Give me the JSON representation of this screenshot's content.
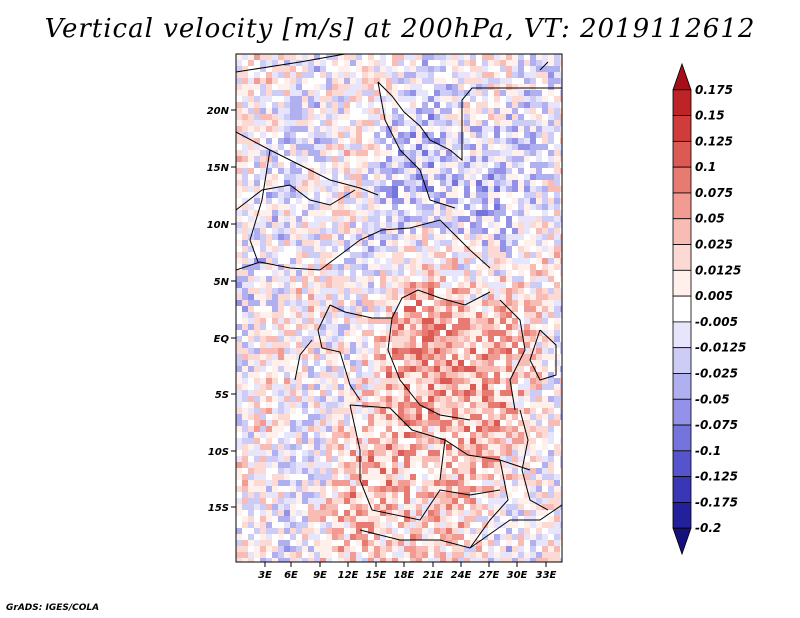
{
  "title": "Vertical velocity [m/s] at 200hPa, VT: 2019112612",
  "credit": "GrADS: IGES/COLA",
  "map": {
    "lat_labels": [
      "20N",
      "15N",
      "10N",
      "5N",
      "EQ",
      "5S",
      "10S",
      "15S"
    ],
    "lon_labels": [
      "3E",
      "6E",
      "9E",
      "12E",
      "15E",
      "18E",
      "21E",
      "24E",
      "27E",
      "30E",
      "33E"
    ]
  },
  "colorbar": {
    "levels": [
      "0.175",
      "0.15",
      "0.125",
      "0.1",
      "0.075",
      "0.05",
      "0.025",
      "0.0125",
      "0.005",
      "-0.005",
      "-0.0125",
      "-0.025",
      "-0.05",
      "-0.075",
      "-0.1",
      "-0.125",
      "-0.175",
      "-0.2"
    ],
    "colors": [
      "#a50f1a",
      "#bd2327",
      "#cf3c3b",
      "#dc5a54",
      "#e77b71",
      "#f19b92",
      "#f8bcb4",
      "#fcd9d3",
      "#fff0ec",
      "#ffffff",
      "#e6e5fb",
      "#cdccf6",
      "#b0b0f0",
      "#9392e8",
      "#7574dc",
      "#5654cc",
      "#3a37b6",
      "#22209a",
      "#14117a"
    ]
  }
}
